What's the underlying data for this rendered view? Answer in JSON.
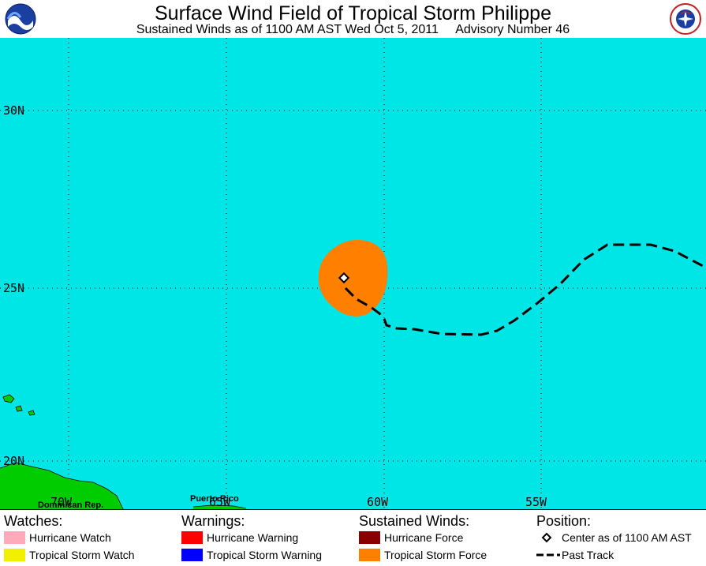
{
  "header": {
    "title": "Surface Wind Field of Tropical Storm Philippe",
    "subtitle": "Sustained Winds as of 1100 AM AST Wed Oct 5, 2011     Advisory Number 46",
    "logos": [
      "noaa-logo",
      "national-weather-service-logo"
    ]
  },
  "map": {
    "latitude_labels": [
      "30N",
      "25N",
      "20N"
    ],
    "longitude_labels": [
      "70W",
      "65W",
      "60W",
      "55W"
    ],
    "place_labels": [
      "Dominican Rep.",
      "Puerto Rico"
    ],
    "colors": {
      "ocean": "#00E5E5",
      "land": "#00CC00",
      "tropical_storm_force": "#FF8000",
      "grid": "#000000"
    }
  },
  "legend": {
    "watches": {
      "heading": "Watches:",
      "items": [
        {
          "label": "Hurricane Watch",
          "color": "#FFAABB"
        },
        {
          "label": "Tropical Storm Watch",
          "color": "#F0F000"
        }
      ]
    },
    "warnings": {
      "heading": "Warnings:",
      "items": [
        {
          "label": "Hurricane Warning",
          "color": "#FF0000"
        },
        {
          "label": "Tropical Storm Warning",
          "color": "#0000FF"
        }
      ]
    },
    "sustained_winds": {
      "heading": "Sustained Winds:",
      "items": [
        {
          "label": "Hurricane Force",
          "color": "#880000"
        },
        {
          "label": "Tropical Storm Force",
          "color": "#FF8000"
        }
      ]
    },
    "position": {
      "heading": "Position:",
      "items": [
        {
          "label": "Center as of 1100 AM AST",
          "icon": "diamond-icon"
        },
        {
          "label": "Past Track",
          "icon": "dashed-line-icon"
        }
      ]
    }
  }
}
